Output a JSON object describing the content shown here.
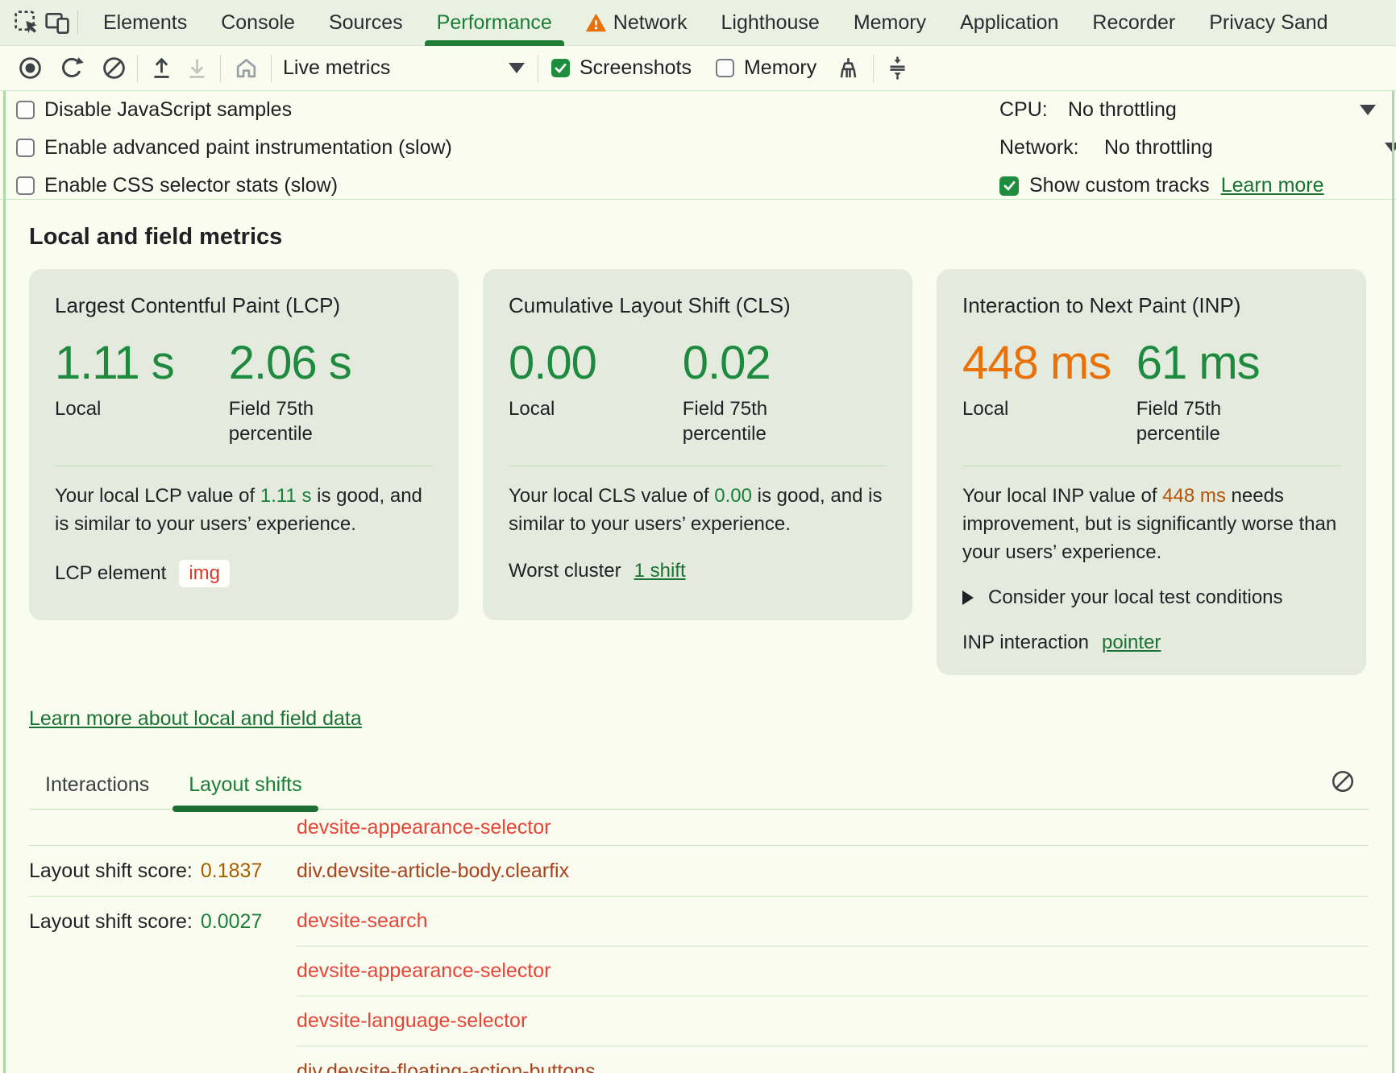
{
  "devtools": {
    "tabs": [
      {
        "label": "Elements"
      },
      {
        "label": "Console"
      },
      {
        "label": "Sources"
      },
      {
        "label": "Performance",
        "active": true
      },
      {
        "label": "Network",
        "warning": true
      },
      {
        "label": "Lighthouse"
      },
      {
        "label": "Memory"
      },
      {
        "label": "Application"
      },
      {
        "label": "Recorder"
      },
      {
        "label": "Privacy Sand"
      }
    ],
    "toolbar": {
      "mode_select": "Live metrics",
      "screenshots_label": "Screenshots",
      "memory_label": "Memory"
    },
    "settings": {
      "checkboxes": [
        "Disable JavaScript samples",
        "Enable advanced paint instrumentation (slow)",
        "Enable CSS selector stats (slow)"
      ],
      "cpu_label": "CPU:",
      "cpu_value": "No throttling",
      "network_label": "Network:",
      "network_value": "No throttling",
      "custom_tracks_label": "Show custom tracks",
      "learn_more": "Learn more"
    },
    "metrics": {
      "heading": "Local and field metrics",
      "cards": [
        {
          "title": "Largest Contentful Paint (LCP)",
          "local_value": "1.11 s",
          "local_label": "Local",
          "field_value": "2.06 s",
          "field_label": "Field 75th percentile",
          "desc_pre": "Your local LCP value of ",
          "desc_value": "1.11 s",
          "desc_post": " is good, and is similar to your users’ experience.",
          "footer_label": "LCP element",
          "footer_chip": "img"
        },
        {
          "title": "Cumulative Layout Shift (CLS)",
          "local_value": "0.00",
          "local_label": "Local",
          "field_value": "0.02",
          "field_label": "Field 75th percentile",
          "desc_pre": "Your local CLS value of ",
          "desc_value": "0.00",
          "desc_post": " is good, and is similar to your users’ experience.",
          "footer_label": "Worst cluster",
          "footer_link": "1 shift"
        },
        {
          "title": "Interaction to Next Paint (INP)",
          "local_value": "448 ms",
          "local_label": "Local",
          "field_value": "61 ms",
          "field_label": "Field 75th percentile",
          "desc_pre": "Your local INP value of ",
          "desc_value": "448 ms",
          "desc_post": " needs improvement, but is significantly worse than your users’ experience.",
          "details_label": "Consider your local test conditions",
          "footer_label": "INP interaction",
          "footer_link": "pointer"
        }
      ],
      "learn_more_link": "Learn more about local and field data"
    },
    "log": {
      "tabs": [
        {
          "label": "Interactions"
        },
        {
          "label": "Layout shifts",
          "active": true
        }
      ],
      "score_label": "Layout shift score:",
      "rows": [
        {
          "element": "devsite-appearance-selector",
          "element_color": "bright",
          "divider": "full",
          "first": true
        },
        {
          "score": "0.1837",
          "score_tone": "orange",
          "element": "div.devsite-article-body.clearfix",
          "element_color": "brown",
          "divider": "full"
        },
        {
          "score": "0.0027",
          "score_tone": "green",
          "element": "devsite-search",
          "element_color": "bright",
          "divider": "indent"
        },
        {
          "element": "devsite-appearance-selector",
          "element_color": "bright",
          "divider": "indent"
        },
        {
          "element": "devsite-language-selector",
          "element_color": "bright",
          "divider": "indent"
        },
        {
          "element": "div.devsite-floating-action-buttons",
          "element_color": "brown",
          "divider": "none"
        }
      ]
    },
    "colors": {
      "accent_green": "#1a7d36",
      "metric_green": "#1d8a3e",
      "metric_orange": "#e8710a",
      "inline_green": "#188038",
      "inline_orange": "#b45309",
      "score_orange": "#a85d00",
      "score_green": "#1a7f37",
      "selector_red": "#e74438",
      "selector_brown": "#a8431f",
      "link_green": "#1b7235",
      "warning_orange": "#e8710a",
      "card_background": "#e4ebde",
      "panel_background": "#f9fcef",
      "tabbar_background": "#e9f1e3"
    }
  }
}
